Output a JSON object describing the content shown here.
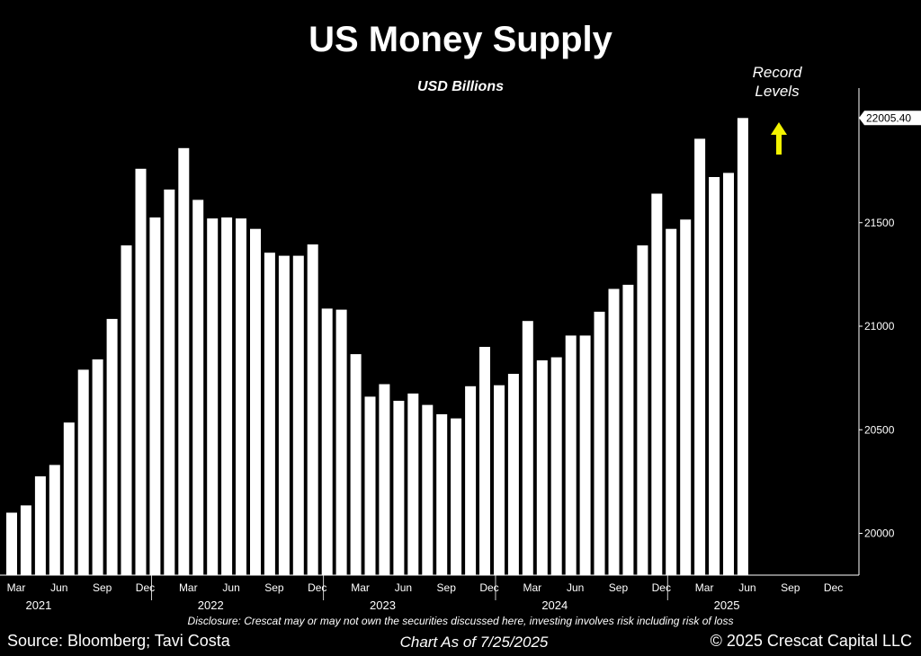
{
  "chart_data": {
    "type": "bar",
    "title": "US Money Supply",
    "subtitle": "USD Billions",
    "ylim": [
      19800,
      22300
    ],
    "yticks": [
      20000,
      20500,
      21000,
      21500
    ],
    "ytick_labels": [
      "20000",
      "20500",
      "21000",
      "21500"
    ],
    "last_value_label": "22005.40",
    "bar_color": "#ffffff",
    "background": "#000000",
    "start_month": "2021-03",
    "values": [
      20100,
      20135,
      20275,
      20330,
      20535,
      20790,
      20840,
      21035,
      21390,
      21760,
      21525,
      21660,
      21860,
      21610,
      21520,
      21525,
      21520,
      21470,
      21355,
      21340,
      21340,
      21395,
      21085,
      21080,
      20865,
      20660,
      20720,
      20640,
      20675,
      20620,
      20575,
      20555,
      20710,
      20900,
      20715,
      20770,
      21025,
      20835,
      20850,
      20955,
      20955,
      21070,
      21180,
      21200,
      21390,
      21640,
      21470,
      21515,
      21905,
      21720,
      21740,
      22005.4
    ],
    "x_month_labels": [
      "Mar",
      "Jun",
      "Sep",
      "Dec",
      "Mar",
      "Jun",
      "Sep",
      "Dec",
      "Mar",
      "Jun",
      "Sep",
      "Dec",
      "Mar",
      "Jun",
      "Sep",
      "Dec",
      "Mar",
      "Jun",
      "Sep",
      "Dec"
    ],
    "x_year_labels": [
      "2021",
      "2022",
      "2023",
      "2024",
      "2025"
    ],
    "annotation": "Record\nLevels",
    "arrow_color": "#f2f200"
  },
  "footer": {
    "disclosure": "Disclosure: Crescat may or may not own the securities discussed here, investing involves risk including risk of loss",
    "source": "Source: Bloomberg; Tavi Costa",
    "as_of": "Chart As of 7/25/2025",
    "copyright": "© 2025 Crescat Capital LLC"
  }
}
